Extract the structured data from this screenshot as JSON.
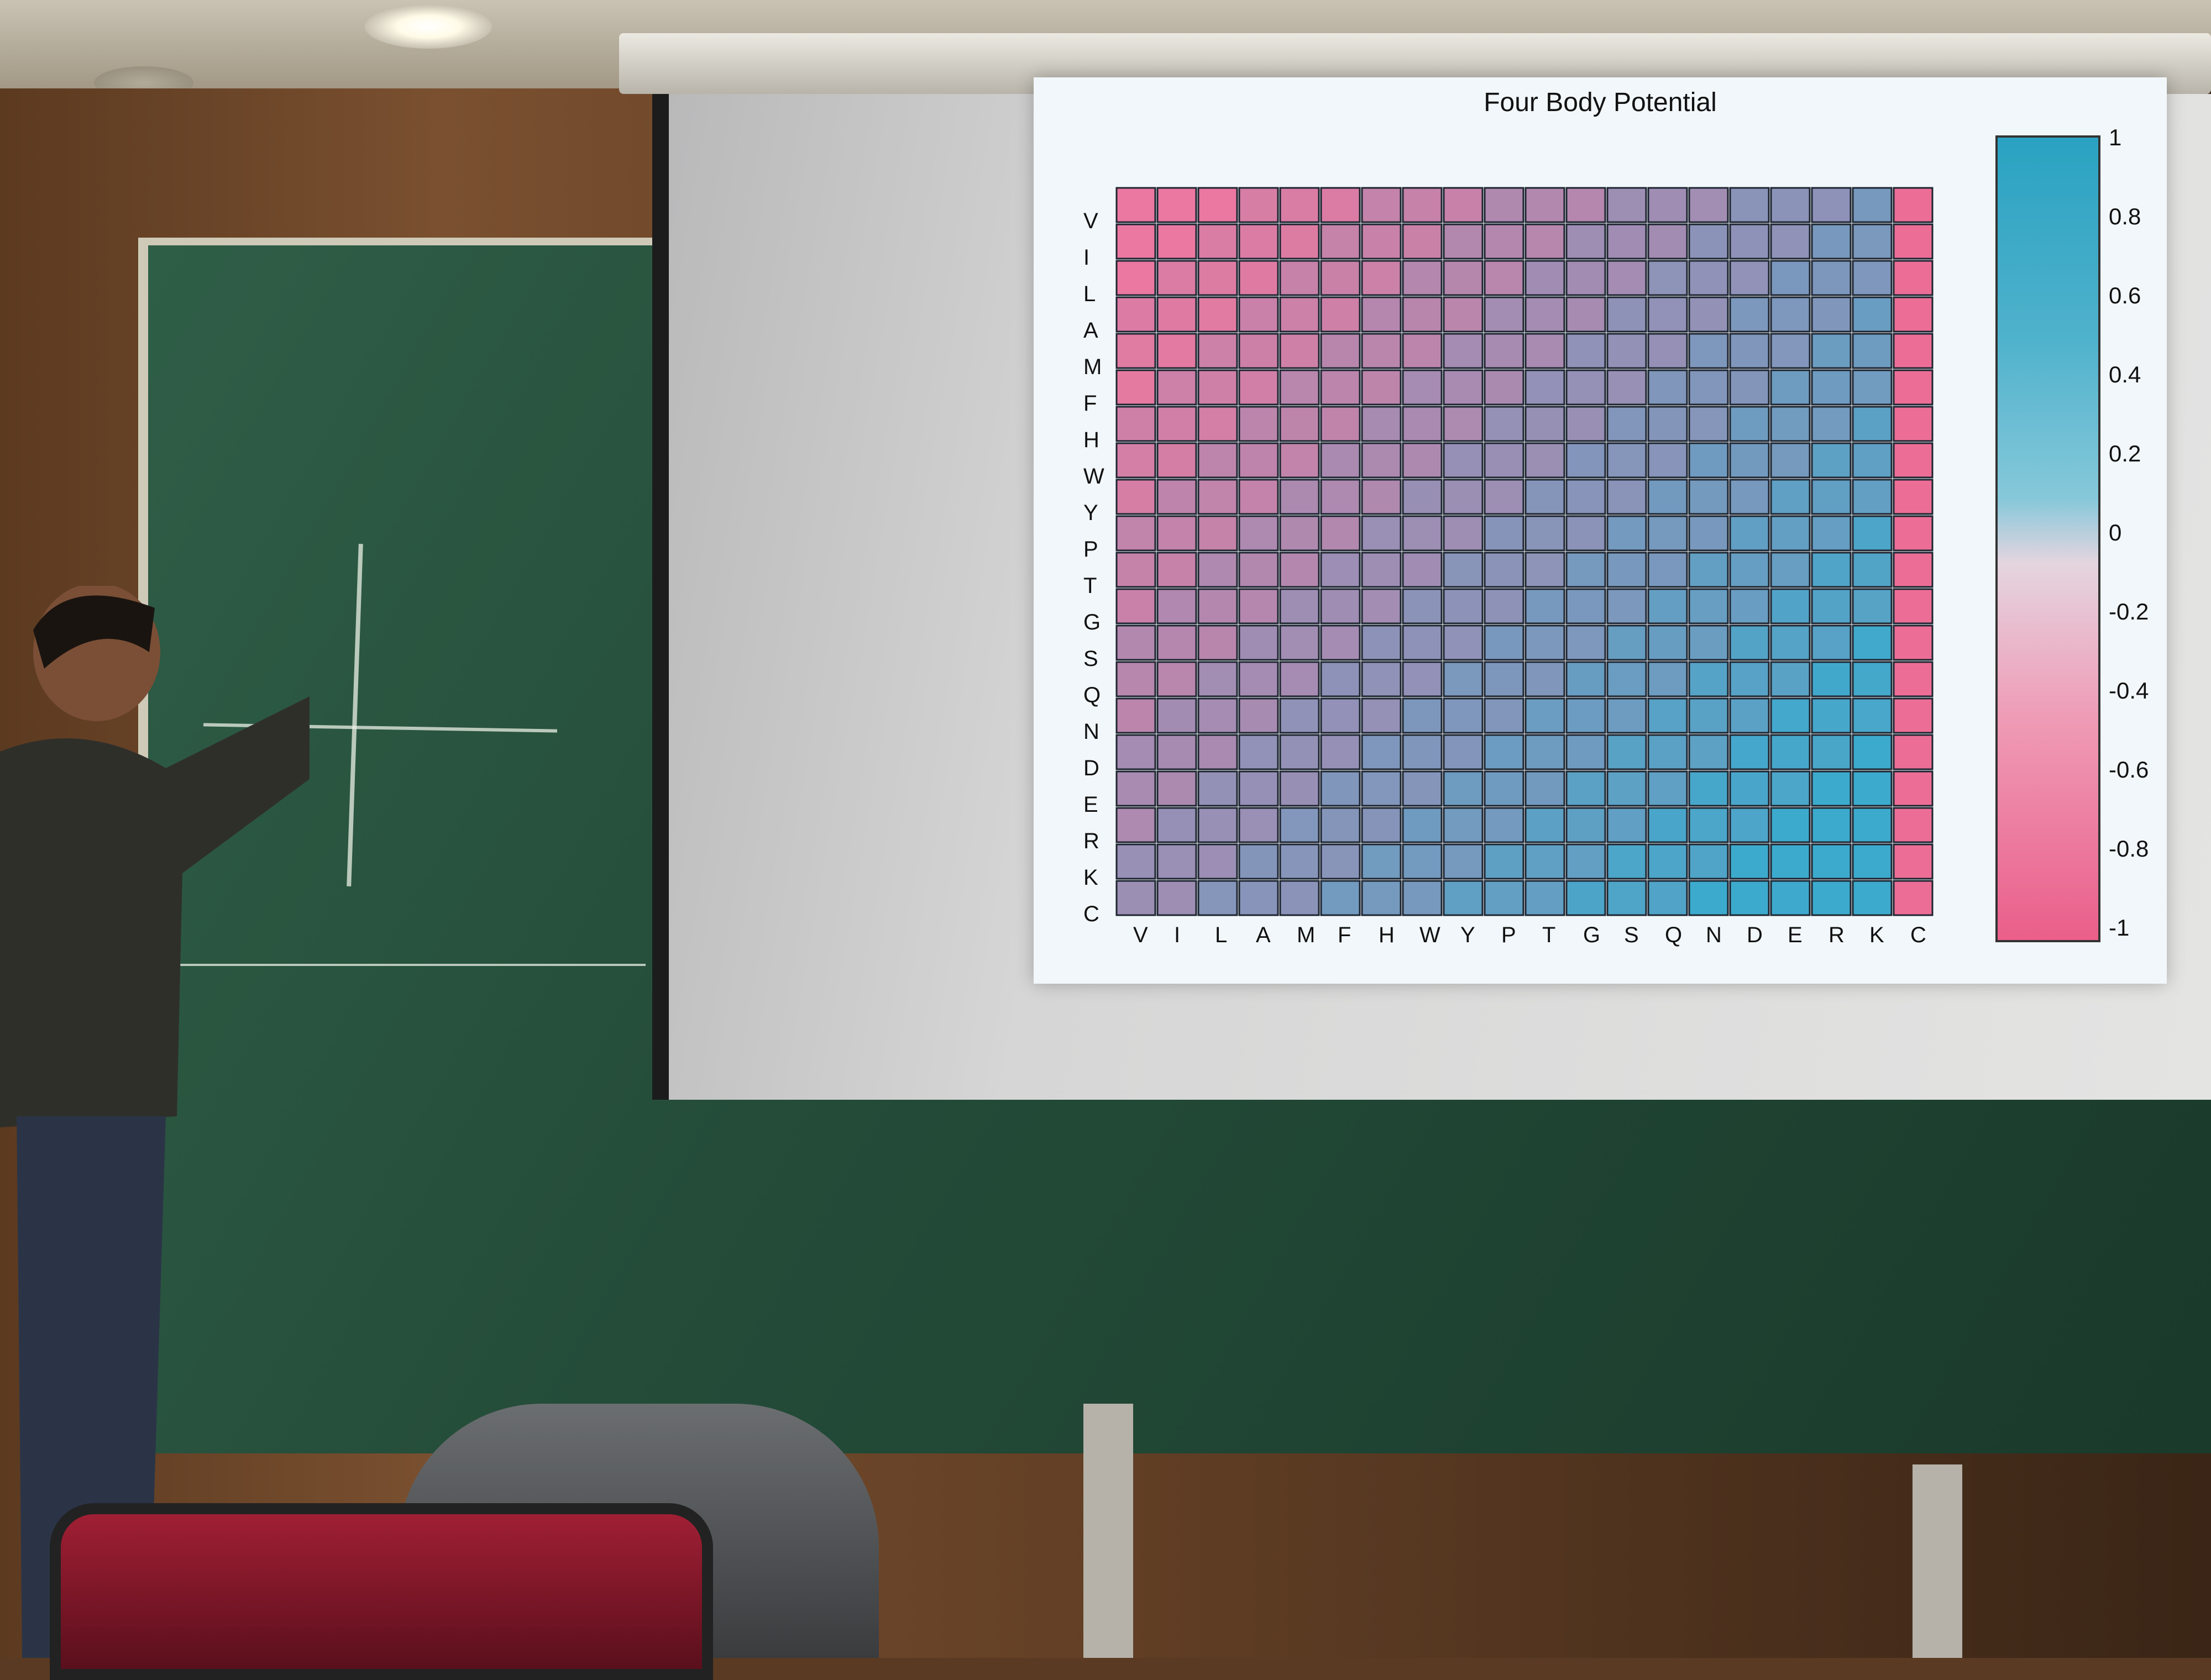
{
  "slide": {
    "title": "Four Body Potential"
  },
  "chart_data": {
    "type": "heatmap",
    "title": "Four Body Potential",
    "rows": [
      "V",
      "I",
      "L",
      "A",
      "M",
      "F",
      "H",
      "W",
      "Y",
      "P",
      "T",
      "G",
      "S",
      "Q",
      "N",
      "D",
      "E",
      "R",
      "K",
      "C"
    ],
    "columns": [
      "V",
      "I",
      "L",
      "A",
      "M",
      "F",
      "H",
      "W",
      "Y",
      "P",
      "T",
      "G",
      "S",
      "Q",
      "N",
      "D",
      "E",
      "R",
      "K",
      "C"
    ],
    "colorbar": {
      "ticks": [
        "1",
        "0.8",
        "0.6",
        "0.4",
        "0.2",
        "0",
        "-0.2",
        "-0.4",
        "-0.6",
        "-0.8",
        "-1"
      ],
      "range": [
        -1,
        1
      ],
      "high_color": "#2aa2c2",
      "low_color": "#ea5f8a"
    }
  }
}
